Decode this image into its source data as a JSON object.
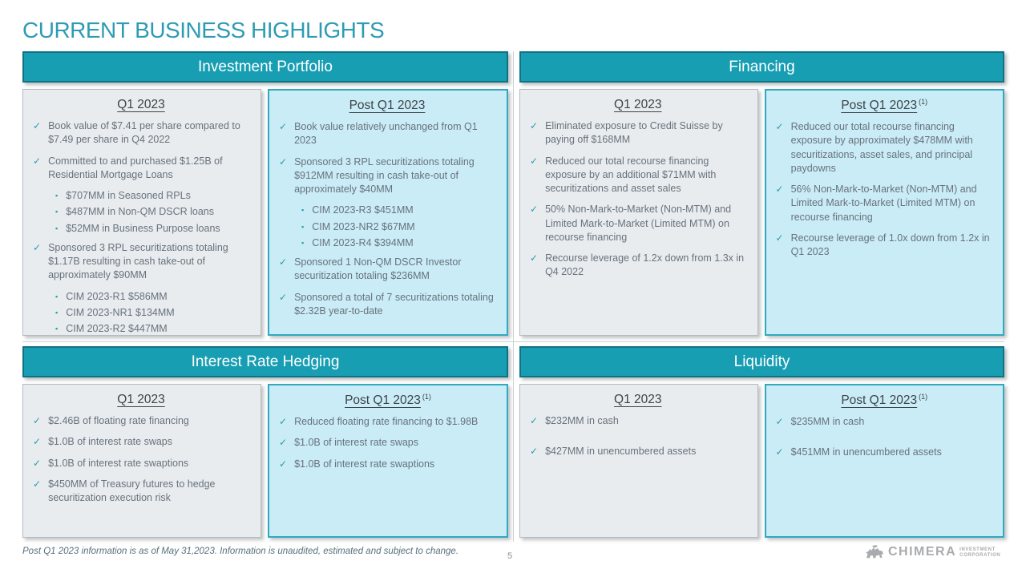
{
  "slide": {
    "title": "CURRENT BUSINESS HIGHLIGHTS",
    "footnote": "Post Q1 2023 information is as of May 31,2023. Information is unaudited, estimated and subject to change.",
    "page_number": "5"
  },
  "logo": {
    "name": "CHIMERA",
    "subtitle_line1": "INVESTMENT",
    "subtitle_line2": "CORPORATION",
    "icon": "chimera-beast-icon"
  },
  "icons": {
    "check": "✓",
    "square_bullet": "▪"
  },
  "colors": {
    "accent_teal": "#189EB3",
    "accent_teal_dark": "#107384",
    "title_teal": "#2E9BB5",
    "q1_box_fill": "#E8ECEF",
    "q1_box_border": "#B4BCC2",
    "post_box_fill": "#C9ECF6",
    "post_box_border": "#31A9BF",
    "body_text": "#68727C",
    "check_teal": "#2A9BB1"
  },
  "sections": [
    {
      "title": "Investment Portfolio",
      "columns": [
        {
          "heading": "Q1 2023",
          "note": "",
          "items": [
            {
              "type": "check",
              "text": "Book value of $7.41 per share compared to $7.49 per share in Q4 2022"
            },
            {
              "type": "check",
              "text": "Committed to and purchased $1.25B of Residential Mortgage Loans"
            },
            {
              "type": "bullet",
              "text": "$707MM in Seasoned RPLs"
            },
            {
              "type": "bullet",
              "text": "$487MM in Non-QM DSCR loans"
            },
            {
              "type": "bullet",
              "text": "$52MM in Business Purpose loans"
            },
            {
              "type": "check",
              "text": "Sponsored 3 RPL securitizations totaling $1.17B resulting in cash take-out of approximately $90MM"
            },
            {
              "type": "bullet",
              "text": "CIM 2023-R1 $586MM"
            },
            {
              "type": "bullet",
              "text": "CIM 2023-NR1 $134MM"
            },
            {
              "type": "bullet",
              "text": "CIM 2023-R2 $447MM"
            }
          ]
        },
        {
          "heading": "Post Q1 2023",
          "note": "",
          "items": [
            {
              "type": "check",
              "text": "Book value relatively unchanged from Q1 2023"
            },
            {
              "type": "check",
              "text": "Sponsored 3 RPL securitizations totaling $912MM resulting in cash take-out of approximately $40MM"
            },
            {
              "type": "bullet",
              "text": "CIM 2023-R3 $451MM"
            },
            {
              "type": "bullet",
              "text": "CIM 2023-NR2 $67MM"
            },
            {
              "type": "bullet",
              "text": "CIM 2023-R4 $394MM"
            },
            {
              "type": "check",
              "text": "Sponsored 1 Non-QM DSCR Investor securitization totaling $236MM"
            },
            {
              "type": "check",
              "text": "Sponsored a total of 7 securitizations totaling $2.32B year-to-date"
            }
          ]
        }
      ]
    },
    {
      "title": "Financing",
      "columns": [
        {
          "heading": "Q1 2023",
          "note": "",
          "items": [
            {
              "type": "check",
              "text": "Eliminated exposure to Credit Suisse by paying off $168MM"
            },
            {
              "type": "check",
              "text": "Reduced our total recourse financing exposure by an additional $71MM with securitizations and asset sales"
            },
            {
              "type": "check",
              "text": "50% Non-Mark-to-Market (Non-MTM) and Limited Mark-to-Market (Limited MTM) on recourse financing"
            },
            {
              "type": "check",
              "text": "Recourse leverage of 1.2x down from 1.3x in Q4 2022"
            }
          ]
        },
        {
          "heading": "Post Q1 2023",
          "note": "(1)",
          "items": [
            {
              "type": "check",
              "text": "Reduced our total recourse financing exposure by approximately $478MM with securitizations, asset sales, and principal paydowns"
            },
            {
              "type": "check",
              "text": "56% Non-Mark-to-Market (Non-MTM) and Limited Mark-to-Market (Limited MTM) on recourse financing"
            },
            {
              "type": "check",
              "text": "Recourse leverage of 1.0x down from 1.2x in Q1 2023"
            }
          ]
        }
      ]
    },
    {
      "title": "Interest Rate Hedging",
      "columns": [
        {
          "heading": "Q1 2023",
          "note": "",
          "items": [
            {
              "type": "check",
              "text": "$2.46B of floating rate financing"
            },
            {
              "type": "check",
              "text": "$1.0B of interest rate swaps"
            },
            {
              "type": "check",
              "text": "$1.0B of interest rate swaptions"
            },
            {
              "type": "check",
              "text": "$450MM of Treasury futures to hedge securitization execution risk"
            }
          ]
        },
        {
          "heading": "Post Q1 2023",
          "note": "(1)",
          "items": [
            {
              "type": "check",
              "text": "Reduced floating rate financing to $1.98B"
            },
            {
              "type": "check",
              "text": "$1.0B of interest rate swaps"
            },
            {
              "type": "check",
              "text": "$1.0B of interest rate swaptions"
            }
          ]
        }
      ]
    },
    {
      "title": "Liquidity",
      "columns": [
        {
          "heading": "Q1 2023",
          "note": "",
          "items": [
            {
              "type": "check",
              "text": "$232MM in cash"
            },
            {
              "type": "check",
              "text": "$427MM in unencumbered assets"
            }
          ]
        },
        {
          "heading": "Post Q1 2023",
          "note": "(1)",
          "items": [
            {
              "type": "check",
              "text": "$235MM in cash"
            },
            {
              "type": "check",
              "text": "$451MM in unencumbered assets"
            }
          ]
        }
      ]
    }
  ]
}
